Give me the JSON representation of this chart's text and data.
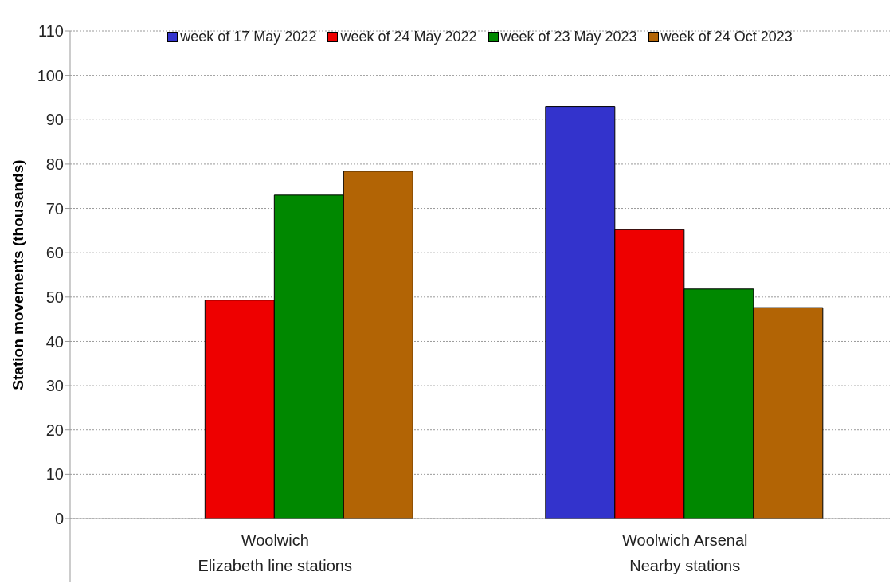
{
  "chart_data": {
    "type": "bar",
    "ylabel": "Station movements (thousands)",
    "categories": [
      "Woolwich",
      "Woolwich Arsenal"
    ],
    "annotations": [
      "Elizabeth line stations",
      "Nearby stations"
    ],
    "series": [
      {
        "name": "week of 17 May 2022",
        "color": "#3333cc",
        "values": [
          null,
          93.0
        ]
      },
      {
        "name": "week of 24 May 2022",
        "color": "#ee0000",
        "values": [
          49.3,
          65.2
        ]
      },
      {
        "name": "week of 23 May 2023",
        "color": "#008800",
        "values": [
          73.0,
          51.8
        ]
      },
      {
        "name": "week of 24 Oct 2023",
        "color": "#b26405",
        "values": [
          78.4,
          47.6
        ]
      }
    ],
    "ylim": [
      0,
      110
    ],
    "yticks": [
      0,
      10,
      20,
      30,
      40,
      50,
      60,
      70,
      80,
      90,
      100,
      110
    ],
    "grid": "y",
    "legend": "top"
  }
}
